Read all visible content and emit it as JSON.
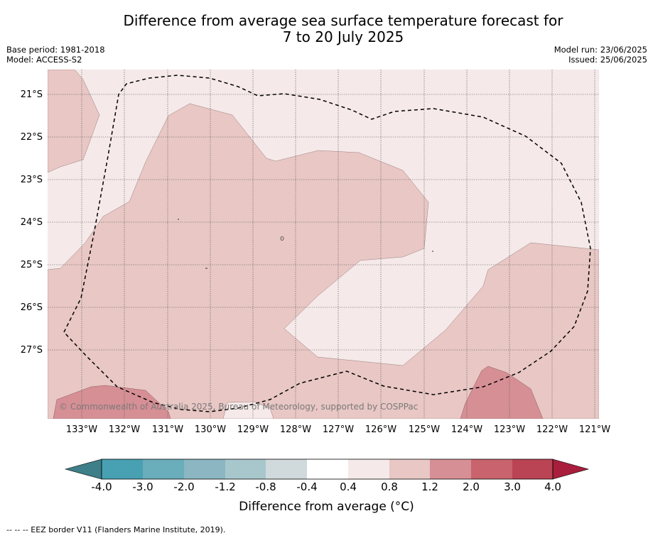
{
  "title_line1": "Difference from average sea surface temperature forecast for",
  "title_line2": "7 to 20 July 2025",
  "meta": {
    "base_period": "Base period: 1981-2018",
    "model": "Model: ACCESS-S2",
    "model_run": "Model run: 23/06/2025",
    "issued": "Issued: 25/06/2025"
  },
  "map": {
    "lat_labels": [
      "21°S",
      "22°S",
      "23°S",
      "24°S",
      "25°S",
      "26°S",
      "27°S"
    ],
    "lon_labels": [
      "133°W",
      "132°W",
      "131°W",
      "130°W",
      "129°W",
      "128°W",
      "127°W",
      "126°W",
      "125°W",
      "124°W",
      "123°W",
      "122°W",
      "121°W"
    ],
    "copyright": "© Commonwealth of Australia 2025, Bureau of Meteorology, supported by COSPPac",
    "colors": {
      "band_0.4_0.8": "#f5e9e9",
      "band_0.8_1.2": "#e8c7c4",
      "band_1.2_2.0": "#d68f95"
    }
  },
  "colorbar": {
    "tick_labels": [
      "-4.0",
      "-3.0",
      "-2.0",
      "-1.2",
      "-0.8",
      "-0.4",
      "0.4",
      "0.8",
      "1.2",
      "2.0",
      "3.0",
      "4.0"
    ],
    "colors": [
      "#3e7f89",
      "#48a0b3",
      "#6aadbb",
      "#8bb6c2",
      "#a8c7cc",
      "#d0d9db",
      "#ffffff",
      "#f5e9e9",
      "#e8c7c4",
      "#d68f95",
      "#c9636d",
      "#bb4454",
      "#a81e3c"
    ],
    "label": "Difference from average (°C)"
  },
  "footnote": "--  --  -- EEZ border V11 (Flanders Marine Institute, 2019)."
}
